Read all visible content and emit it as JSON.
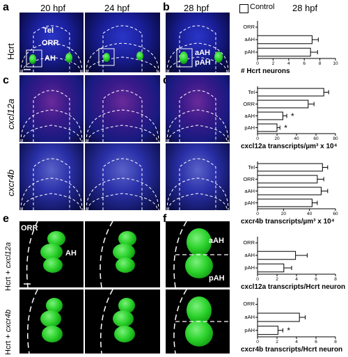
{
  "panels": {
    "a": "a",
    "b": "b",
    "c": "c",
    "d": "d",
    "e": "e",
    "f": "f"
  },
  "headers": {
    "h20": "20 hpf",
    "h24": "24 hpf",
    "h28": "28 hpf",
    "h28b": "28 hpf"
  },
  "legend": {
    "label": "Control"
  },
  "row_labels": {
    "hcrt": "Hcrt",
    "cxcl12a": "cxcl12a",
    "cxcr4b": "cxcr4b",
    "e_row1_a": "Hcrt + ",
    "e_row1_b": "cxcl12a",
    "e_row2_a": "Hcrt + ",
    "e_row2_b": "cxcr4b"
  },
  "image_labels": {
    "tel": "Tel",
    "orr": "ORR",
    "ah": "AH",
    "aah": "aAH",
    "pah": "pAH",
    "orr_e": "ORR",
    "ah_e": "AH",
    "aah_f": "aAH",
    "pah_f": "pAH"
  },
  "chart_data": [
    {
      "type": "bar",
      "orientation": "horizontal",
      "categories": [
        "ORR",
        "aAH",
        "pAH"
      ],
      "values": [
        0,
        7,
        6.8
      ],
      "errors": [
        0,
        0.8,
        0.9
      ],
      "xlabel": "# Hcrt neurons",
      "xlim": [
        0,
        10
      ],
      "xticks": [
        "0",
        "2",
        "4",
        "6",
        "8",
        "10"
      ],
      "significant": []
    },
    {
      "type": "bar",
      "orientation": "horizontal",
      "categories": [
        "Tel",
        "ORR",
        "aAH",
        "pAH"
      ],
      "values": [
        68,
        52,
        26,
        20
      ],
      "errors": [
        5,
        6,
        4,
        3
      ],
      "xlabel": "cxcl12a transcripts/µm³ x 10⁴",
      "xlim": [
        0,
        80
      ],
      "xticks": [
        "0",
        "20",
        "40",
        "60",
        "80"
      ],
      "significant": [
        "aAH",
        "pAH"
      ]
    },
    {
      "type": "bar",
      "orientation": "horizontal",
      "categories": [
        "Tel",
        "ORR",
        "aAH",
        "pAH"
      ],
      "values": [
        50,
        46,
        49,
        42
      ],
      "errors": [
        4,
        5,
        5,
        4
      ],
      "xlabel": "cxcr4b transcripts/µm³ x 10⁴",
      "xlim": [
        0,
        60
      ],
      "xticks": [
        "0",
        "20",
        "40",
        "60"
      ],
      "significant": []
    },
    {
      "type": "bar",
      "orientation": "horizontal",
      "categories": [
        "ORR",
        "aAH",
        "pAH"
      ],
      "values": [
        0,
        3.9,
        2.7
      ],
      "errors": [
        0,
        1.2,
        0.8
      ],
      "xlabel": "cxcl12a transcripts/Hcrt neuron",
      "xlim": [
        0,
        8
      ],
      "xticks": [
        "0",
        "2",
        "4",
        "6",
        "8"
      ],
      "significant": []
    },
    {
      "type": "bar",
      "orientation": "horizontal",
      "categories": [
        "ORR",
        "aAH",
        "pAH"
      ],
      "values": [
        0,
        4.3,
        2.1
      ],
      "errors": [
        0,
        0.6,
        0.5
      ],
      "xlabel": "cxcr4b transcripts/Hcrt neuron",
      "xlim": [
        0,
        8
      ],
      "xticks": [
        "0",
        "2",
        "4",
        "6",
        "8"
      ],
      "significant": [
        "pAH"
      ]
    }
  ],
  "colors": {
    "bar_fill": "#ffffff",
    "bar_stroke": "#000000",
    "gfp": "#2bd22b",
    "dapi": "#1a1f9a"
  }
}
